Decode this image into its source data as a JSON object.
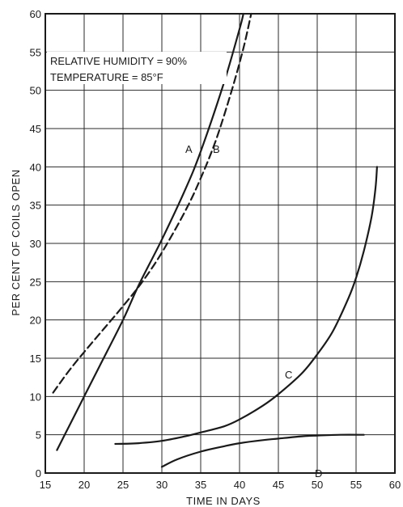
{
  "chart_data": {
    "type": "line",
    "title": "",
    "xlabel": "TIME IN DAYS",
    "ylabel": "PER CENT OF COILS OPEN",
    "xlim": [
      15,
      60
    ],
    "ylim": [
      0,
      60
    ],
    "xticks": [
      15,
      20,
      25,
      30,
      35,
      40,
      45,
      50,
      55,
      60
    ],
    "yticks": [
      0,
      5,
      10,
      15,
      20,
      25,
      30,
      35,
      40,
      45,
      50,
      55,
      60
    ],
    "grid": true,
    "annotations": [
      "RELATIVE HUMIDITY = 90%",
      "TEMPERATURE = 85°F"
    ],
    "series": [
      {
        "name": "A",
        "style": "solid",
        "x": [
          16.5,
          18,
          20,
          22,
          25,
          27,
          30,
          33,
          35,
          38,
          40,
          40.5
        ],
        "y": [
          3,
          6,
          10,
          14,
          20,
          24.5,
          30.5,
          37,
          42,
          51,
          58,
          60
        ]
      },
      {
        "name": "B",
        "style": "dashed",
        "x": [
          16,
          18,
          20,
          22.5,
          25,
          27.5,
          30,
          33,
          35,
          37,
          39,
          40.5,
          41.5
        ],
        "y": [
          10.5,
          13.3,
          15.8,
          18.8,
          21.8,
          25,
          28.8,
          34.2,
          38.5,
          43.6,
          50,
          55.5,
          60
        ]
      },
      {
        "name": "C",
        "style": "solid",
        "x": [
          24,
          27,
          30,
          33,
          35,
          38,
          40,
          43,
          45,
          48,
          50,
          52,
          54,
          55,
          56,
          57,
          57.5,
          57.7
        ],
        "y": [
          3.8,
          3.9,
          4.2,
          4.8,
          5.3,
          6.1,
          7,
          8.8,
          10.3,
          13,
          15.5,
          18.5,
          22.8,
          25.5,
          29,
          33.5,
          37.2,
          40
        ]
      },
      {
        "name": "D",
        "style": "solid",
        "x": [
          30,
          32,
          35,
          38,
          40,
          43,
          45,
          48,
          50,
          53,
          56
        ],
        "y": [
          0.8,
          1.8,
          2.8,
          3.5,
          3.9,
          4.3,
          4.5,
          4.8,
          4.9,
          5.0,
          5.0
        ]
      }
    ]
  }
}
